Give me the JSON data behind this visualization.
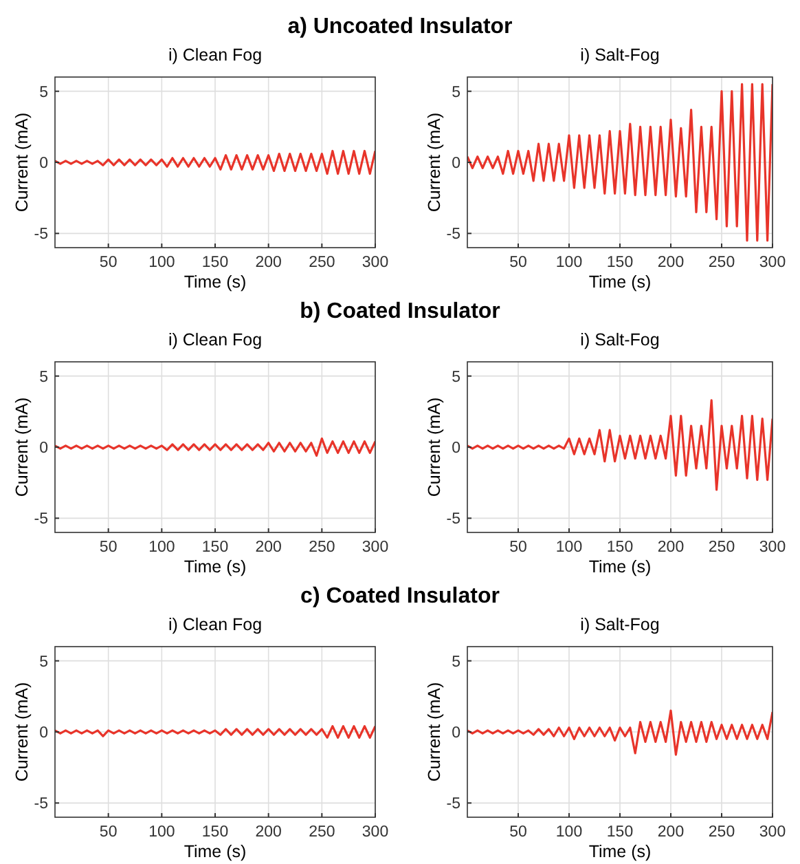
{
  "chart_data": [
    {
      "type": "line",
      "title": "a) Uncoated Insulator",
      "subtitle": "i) Clean Fog",
      "xlabel": "Time (s)",
      "ylabel": "Current (mA)",
      "xlim": [
        0,
        300
      ],
      "xticks": [
        50,
        100,
        150,
        200,
        250,
        300
      ],
      "ylim": [
        -6,
        6
      ],
      "yticks": [
        -5,
        0,
        5
      ],
      "grid": true,
      "x": [
        0,
        5,
        10,
        15,
        20,
        25,
        30,
        35,
        40,
        45,
        50,
        55,
        60,
        65,
        70,
        75,
        80,
        85,
        90,
        95,
        100,
        105,
        110,
        115,
        120,
        125,
        130,
        135,
        140,
        145,
        150,
        155,
        160,
        165,
        170,
        175,
        180,
        185,
        190,
        195,
        200,
        205,
        210,
        215,
        220,
        225,
        230,
        235,
        240,
        245,
        250,
        255,
        260,
        265,
        270,
        275,
        280,
        285,
        290,
        295,
        300
      ],
      "series": [
        {
          "color": "#e8342a",
          "values": [
            0.1,
            -0.1,
            0.1,
            -0.1,
            0.1,
            -0.1,
            0.1,
            -0.1,
            0.1,
            -0.2,
            0.2,
            -0.2,
            0.2,
            -0.2,
            0.2,
            -0.2,
            0.2,
            -0.2,
            0.2,
            -0.2,
            0.2,
            -0.3,
            0.3,
            -0.3,
            0.3,
            -0.3,
            0.3,
            -0.3,
            0.3,
            -0.3,
            0.3,
            -0.5,
            0.5,
            -0.5,
            0.5,
            -0.5,
            0.5,
            -0.5,
            0.5,
            -0.5,
            0.5,
            -0.6,
            0.6,
            -0.6,
            0.6,
            -0.6,
            0.6,
            -0.6,
            0.6,
            -0.6,
            0.6,
            -0.8,
            0.8,
            -0.8,
            0.8,
            -0.8,
            0.8,
            -0.8,
            0.8,
            -0.8,
            0.8
          ]
        }
      ]
    },
    {
      "type": "line",
      "subtitle": "i) Salt-Fog",
      "xlabel": "Time (s)",
      "ylabel": "Current (mA)",
      "xlim": [
        0,
        300
      ],
      "xticks": [
        50,
        100,
        150,
        200,
        250,
        300
      ],
      "ylim": [
        -6,
        6
      ],
      "yticks": [
        -5,
        0,
        5
      ],
      "grid": true,
      "x": [
        0,
        5,
        10,
        15,
        20,
        25,
        30,
        35,
        40,
        45,
        50,
        55,
        60,
        65,
        70,
        75,
        80,
        85,
        90,
        95,
        100,
        105,
        110,
        115,
        120,
        125,
        130,
        135,
        140,
        145,
        150,
        155,
        160,
        165,
        170,
        175,
        180,
        185,
        190,
        195,
        200,
        205,
        210,
        215,
        220,
        225,
        230,
        235,
        240,
        245,
        250,
        255,
        260,
        265,
        270,
        275,
        280,
        285,
        290,
        295,
        300
      ],
      "series": [
        {
          "color": "#e8342a",
          "values": [
            0.4,
            -0.4,
            0.4,
            -0.4,
            0.4,
            -0.4,
            0.4,
            -0.8,
            0.8,
            -0.8,
            0.8,
            -0.8,
            0.8,
            -1.3,
            1.3,
            -1.3,
            1.3,
            -1.3,
            1.3,
            -1.3,
            1.9,
            -1.8,
            1.9,
            -1.8,
            1.9,
            -1.8,
            1.9,
            -2.2,
            2.2,
            -2.2,
            2.2,
            -2.2,
            2.7,
            -2.3,
            2.5,
            -2.3,
            2.5,
            -2.3,
            2.5,
            -2.3,
            3,
            -2.4,
            2.4,
            -2.4,
            3.7,
            -3.5,
            2.5,
            -3.5,
            2.5,
            -4,
            5,
            -4.5,
            5,
            -4.5,
            5.5,
            -5.5,
            5.5,
            -5.5,
            5.5,
            -5.5,
            5.5
          ]
        }
      ]
    },
    {
      "type": "line",
      "title": "b) Coated Insulator",
      "subtitle": "i) Clean Fog",
      "xlabel": "Time (s)",
      "ylabel": "Current (mA)",
      "xlim": [
        0,
        300
      ],
      "xticks": [
        50,
        100,
        150,
        200,
        250,
        300
      ],
      "ylim": [
        -6,
        6
      ],
      "yticks": [
        -5,
        0,
        5
      ],
      "grid": true,
      "x": [
        0,
        5,
        10,
        15,
        20,
        25,
        30,
        35,
        40,
        45,
        50,
        55,
        60,
        65,
        70,
        75,
        80,
        85,
        90,
        95,
        100,
        105,
        110,
        115,
        120,
        125,
        130,
        135,
        140,
        145,
        150,
        155,
        160,
        165,
        170,
        175,
        180,
        185,
        190,
        195,
        200,
        205,
        210,
        215,
        220,
        225,
        230,
        235,
        240,
        245,
        250,
        255,
        260,
        265,
        270,
        275,
        280,
        285,
        290,
        295,
        300
      ],
      "series": [
        {
          "color": "#e8342a",
          "values": [
            0.1,
            -0.1,
            0.1,
            -0.1,
            0.1,
            -0.1,
            0.1,
            -0.1,
            0.1,
            -0.1,
            0.1,
            -0.1,
            0.1,
            -0.1,
            0.1,
            -0.1,
            0.1,
            -0.1,
            0.1,
            -0.1,
            0.1,
            -0.2,
            0.2,
            -0.2,
            0.2,
            -0.2,
            0.2,
            -0.2,
            0.2,
            -0.2,
            0.2,
            -0.2,
            0.2,
            -0.2,
            0.2,
            -0.2,
            0.2,
            -0.2,
            0.2,
            -0.2,
            0.3,
            -0.3,
            0.3,
            -0.3,
            0.3,
            -0.3,
            0.3,
            -0.3,
            0.3,
            -0.6,
            0.6,
            -0.4,
            0.4,
            -0.4,
            0.4,
            -0.4,
            0.4,
            -0.4,
            0.4,
            -0.4,
            0.4
          ]
        }
      ]
    },
    {
      "type": "line",
      "subtitle": "i) Salt-Fog",
      "xlabel": "Time (s)",
      "ylabel": "Current (mA)",
      "xlim": [
        0,
        300
      ],
      "xticks": [
        50,
        100,
        150,
        200,
        250,
        300
      ],
      "ylim": [
        -6,
        6
      ],
      "yticks": [
        -5,
        0,
        5
      ],
      "grid": true,
      "x": [
        0,
        5,
        10,
        15,
        20,
        25,
        30,
        35,
        40,
        45,
        50,
        55,
        60,
        65,
        70,
        75,
        80,
        85,
        90,
        95,
        100,
        105,
        110,
        115,
        120,
        125,
        130,
        135,
        140,
        145,
        150,
        155,
        160,
        165,
        170,
        175,
        180,
        185,
        190,
        195,
        200,
        205,
        210,
        215,
        220,
        225,
        230,
        235,
        240,
        245,
        250,
        255,
        260,
        265,
        270,
        275,
        280,
        285,
        290,
        295,
        300
      ],
      "series": [
        {
          "color": "#e8342a",
          "values": [
            0.1,
            -0.1,
            0.1,
            -0.1,
            0.1,
            -0.1,
            0.1,
            -0.1,
            0.1,
            -0.1,
            0.1,
            -0.1,
            0.1,
            -0.1,
            0.1,
            -0.1,
            0.1,
            -0.1,
            0.1,
            -0.1,
            0.6,
            -0.5,
            0.6,
            -0.5,
            0.6,
            -0.5,
            1.2,
            -1,
            1.2,
            -1,
            0.8,
            -0.8,
            0.8,
            -0.8,
            0.8,
            -0.8,
            0.8,
            -0.8,
            0.8,
            -0.8,
            2.2,
            -2,
            2.2,
            -2,
            1.5,
            -1.5,
            1.5,
            -1.5,
            3.3,
            -3,
            1.5,
            -1.5,
            1.5,
            -1.5,
            2.2,
            -2.2,
            2.2,
            -2.3,
            2,
            -2.3,
            2
          ]
        }
      ]
    },
    {
      "type": "line",
      "title": "c) Coated Insulator",
      "subtitle": "i) Clean Fog",
      "xlabel": "Time (s)",
      "ylabel": "Current (mA)",
      "xlim": [
        0,
        300
      ],
      "xticks": [
        50,
        100,
        150,
        200,
        250,
        300
      ],
      "ylim": [
        -6,
        6
      ],
      "yticks": [
        -5,
        0,
        5
      ],
      "grid": true,
      "x": [
        0,
        5,
        10,
        15,
        20,
        25,
        30,
        35,
        40,
        45,
        50,
        55,
        60,
        65,
        70,
        75,
        80,
        85,
        90,
        95,
        100,
        105,
        110,
        115,
        120,
        125,
        130,
        135,
        140,
        145,
        150,
        155,
        160,
        165,
        170,
        175,
        180,
        185,
        190,
        195,
        200,
        205,
        210,
        215,
        220,
        225,
        230,
        235,
        240,
        245,
        250,
        255,
        260,
        265,
        270,
        275,
        280,
        285,
        290,
        295,
        300
      ],
      "series": [
        {
          "color": "#e8342a",
          "values": [
            0.1,
            -0.1,
            0.1,
            -0.1,
            0.1,
            -0.1,
            0.1,
            -0.1,
            0.1,
            -0.3,
            0.1,
            -0.1,
            0.1,
            -0.1,
            0.1,
            -0.1,
            0.1,
            -0.1,
            0.1,
            -0.1,
            0.1,
            -0.1,
            0.1,
            -0.1,
            0.1,
            -0.1,
            0.1,
            -0.1,
            0.1,
            -0.1,
            0.1,
            -0.2,
            0.2,
            -0.2,
            0.2,
            -0.2,
            0.2,
            -0.2,
            0.2,
            -0.2,
            0.2,
            -0.2,
            0.2,
            -0.2,
            0.2,
            -0.2,
            0.2,
            -0.2,
            0.2,
            -0.2,
            0.2,
            -0.4,
            0.4,
            -0.4,
            0.4,
            -0.4,
            0.4,
            -0.4,
            0.4,
            -0.4,
            0.4
          ]
        }
      ]
    },
    {
      "type": "line",
      "subtitle": "i) Salt-Fog",
      "xlabel": "Time (s)",
      "ylabel": "Current (mA)",
      "xlim": [
        0,
        300
      ],
      "xticks": [
        50,
        100,
        150,
        200,
        250,
        300
      ],
      "ylim": [
        -6,
        6
      ],
      "yticks": [
        -5,
        0,
        5
      ],
      "grid": true,
      "x": [
        0,
        5,
        10,
        15,
        20,
        25,
        30,
        35,
        40,
        45,
        50,
        55,
        60,
        65,
        70,
        75,
        80,
        85,
        90,
        95,
        100,
        105,
        110,
        115,
        120,
        125,
        130,
        135,
        140,
        145,
        150,
        155,
        160,
        165,
        170,
        175,
        180,
        185,
        190,
        195,
        200,
        205,
        210,
        215,
        220,
        225,
        230,
        235,
        240,
        245,
        250,
        255,
        260,
        265,
        270,
        275,
        280,
        285,
        290,
        295,
        300
      ],
      "series": [
        {
          "color": "#e8342a",
          "values": [
            0.1,
            -0.1,
            0.1,
            -0.1,
            0.1,
            -0.1,
            0.1,
            -0.1,
            0.1,
            -0.1,
            0.1,
            -0.1,
            0.1,
            -0.2,
            0.2,
            -0.2,
            0.2,
            -0.3,
            0.3,
            -0.3,
            0.3,
            -0.5,
            0.3,
            -0.3,
            0.3,
            -0.3,
            0.3,
            -0.3,
            0.3,
            -0.6,
            0.3,
            -0.3,
            0.3,
            -1.5,
            0.7,
            -0.7,
            0.7,
            -0.7,
            0.7,
            -0.7,
            1.5,
            -1.6,
            0.7,
            -0.7,
            0.7,
            -0.7,
            0.7,
            -0.7,
            0.7,
            -0.5,
            0.5,
            -0.5,
            0.5,
            -0.5,
            0.5,
            -0.5,
            0.5,
            -0.5,
            0.5,
            -0.5,
            1.4
          ]
        }
      ]
    }
  ]
}
